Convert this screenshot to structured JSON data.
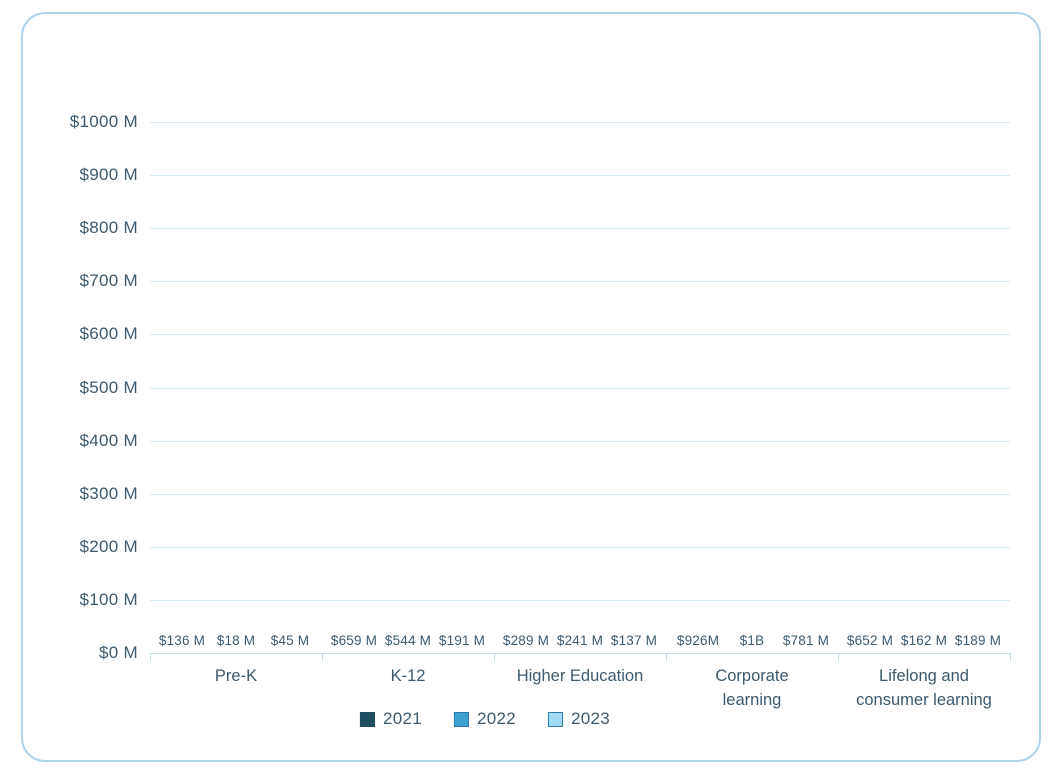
{
  "chart_data": {
    "type": "bar",
    "title": "",
    "xlabel": "",
    "ylabel": "",
    "ylim": [
      0,
      1000
    ],
    "grid": true,
    "legend_position": "bottom",
    "categories": [
      "Pre-K",
      "K-12",
      "Higher Education",
      "Corporate learning",
      "Lifelong and consumer learning"
    ],
    "y_ticks": [
      "$1000 M",
      "$900 M",
      "$800 M",
      "$700 M",
      "$600 M",
      "$500 M",
      "$400 M",
      "$300 M",
      "$200 M",
      "$100 M",
      "$0 M"
    ],
    "series": [
      {
        "name": "2021",
        "color": "#1d4e61",
        "swatch_border": "#1d4e61",
        "values": [
          136,
          659,
          289,
          926,
          652
        ],
        "labels": [
          "$136 M",
          "$659 M",
          "$289 M",
          "$926M",
          "$652 M"
        ]
      },
      {
        "name": "2022",
        "color": "#3fa0d3",
        "swatch_border": "#2d7aa9",
        "values": [
          18,
          544,
          241,
          1000,
          162
        ],
        "labels": [
          "$18 M",
          "$544 M",
          "$241 M",
          "$1B",
          "$162 M"
        ]
      },
      {
        "name": "2023",
        "color": "#a2dbf8",
        "swatch_border": "#2d7aa9",
        "values": [
          45,
          191,
          137,
          781,
          189
        ],
        "labels": [
          "$45 M",
          "$191 M",
          "$137 M",
          "$781 M",
          "$189 M"
        ]
      }
    ],
    "colors": {
      "text": "#3d5a6e",
      "gridline": "#d8ebf7",
      "baseline": "#c6e2f3",
      "card_border": "#aed3ec"
    }
  }
}
